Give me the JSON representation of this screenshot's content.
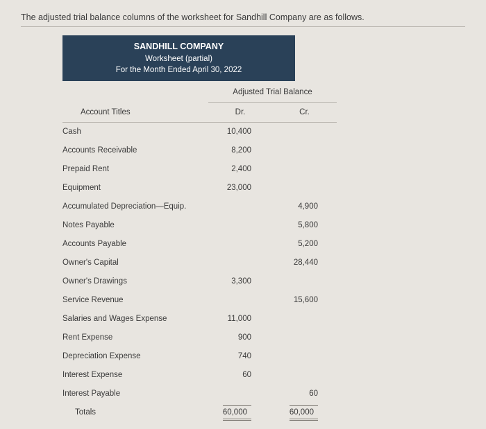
{
  "intro": "The adjusted trial balance columns of the worksheet for Sandhill Company are as follows.",
  "header": {
    "company": "SANDHILL COMPANY",
    "subtitle": "Worksheet (partial)",
    "period": "For the Month Ended April 30, 2022"
  },
  "columns": {
    "group": "Adjusted Trial Balance",
    "account": "Account Titles",
    "dr": "Dr.",
    "cr": "Cr."
  },
  "rows": [
    {
      "account": "Cash",
      "dr": "10,400",
      "cr": ""
    },
    {
      "account": "Accounts Receivable",
      "dr": "8,200",
      "cr": ""
    },
    {
      "account": "Prepaid Rent",
      "dr": "2,400",
      "cr": ""
    },
    {
      "account": "Equipment",
      "dr": "23,000",
      "cr": ""
    },
    {
      "account": "Accumulated Depreciation—Equip.",
      "dr": "",
      "cr": "4,900"
    },
    {
      "account": "Notes Payable",
      "dr": "",
      "cr": "5,800"
    },
    {
      "account": "Accounts Payable",
      "dr": "",
      "cr": "5,200"
    },
    {
      "account": "Owner's Capital",
      "dr": "",
      "cr": "28,440"
    },
    {
      "account": "Owner's Drawings",
      "dr": "3,300",
      "cr": ""
    },
    {
      "account": "Service Revenue",
      "dr": "",
      "cr": "15,600"
    },
    {
      "account": "Salaries and Wages Expense",
      "dr": "11,000",
      "cr": ""
    },
    {
      "account": "Rent Expense",
      "dr": "900",
      "cr": ""
    },
    {
      "account": "Depreciation Expense",
      "dr": "740",
      "cr": ""
    },
    {
      "account": "Interest Expense",
      "dr": "60",
      "cr": ""
    },
    {
      "account": "Interest Payable",
      "dr": "",
      "cr": "60"
    }
  ],
  "totals": {
    "label": "Totals",
    "dr": "60,000",
    "cr": "60,000"
  },
  "colors": {
    "page_bg": "#e8e5e0",
    "header_bg": "#2a4158",
    "header_text": "#ffffff",
    "text": "#3a3a3a",
    "rule": "#b8b4ae"
  }
}
